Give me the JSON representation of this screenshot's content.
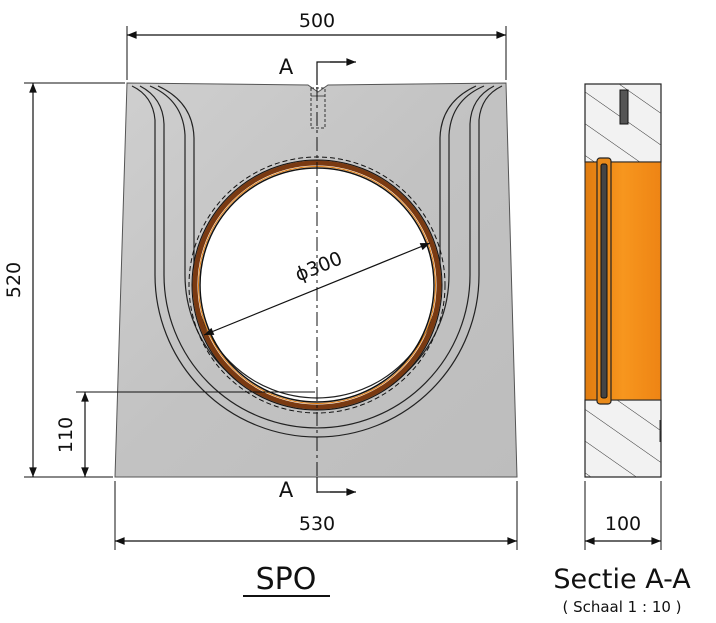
{
  "dimensions": {
    "top_width": "500",
    "height": "520",
    "diameter": "ϕ300",
    "invert_height": "110",
    "bottom_width": "530",
    "section_thickness": "100"
  },
  "section_marks": {
    "top": "A",
    "bottom": "A"
  },
  "labels": {
    "front_view_title": "SPO",
    "section_title": "Sectie A-A",
    "scale": "( Schaal 1 : 10 )"
  },
  "colors": {
    "concrete": "#c6c6c6",
    "pipe_orange": "#f08a1a",
    "ring_brown": "#7a3a12",
    "line": "#111111"
  }
}
